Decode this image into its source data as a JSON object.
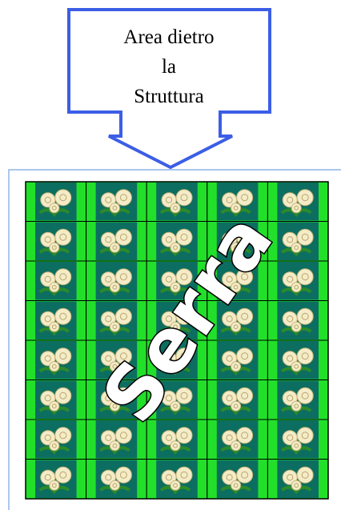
{
  "callout": {
    "lines": [
      "Area dietro",
      "la",
      "Struttura"
    ]
  },
  "area": {
    "label": "Serra"
  }
}
